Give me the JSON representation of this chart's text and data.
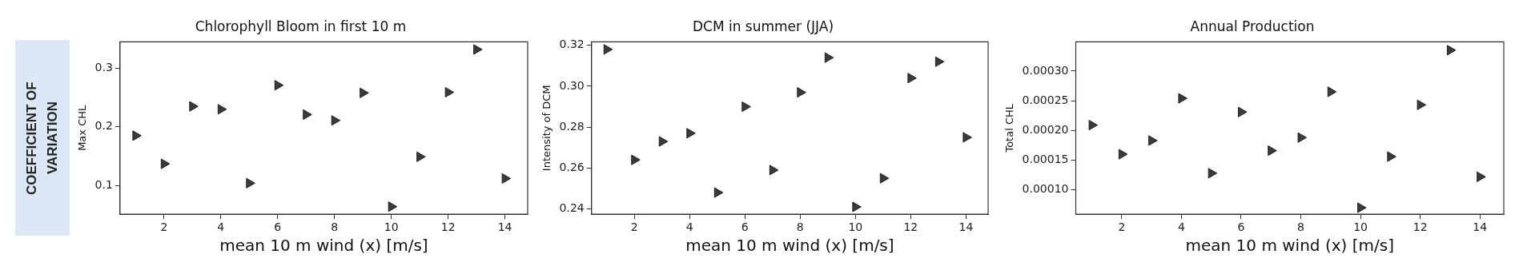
{
  "chart_data": [
    {
      "type": "scatter",
      "title": "Chlorophyll Bloom in first 10 m",
      "xlabel": "mean 10 m wind (x) [m/s]",
      "ylabel": "Max CHL",
      "annotations": [
        "COEFFICIENT OF VARIATION"
      ],
      "x": [
        1,
        2,
        3,
        4,
        5,
        6,
        7,
        8,
        9,
        10,
        11,
        12,
        13,
        14
      ],
      "series": [
        {
          "color": "#3a3a3a",
          "values": [
            0.185,
            0.137,
            0.235,
            0.23,
            0.104,
            0.271,
            0.221,
            0.211,
            0.258,
            0.064,
            0.149,
            0.259,
            0.332,
            0.112
          ]
        }
      ],
      "xlim": [
        0.45,
        14.8
      ],
      "xticks": [
        2,
        4,
        6,
        8,
        10,
        12,
        14
      ],
      "ylim": [
        0.051,
        0.345
      ],
      "yticks": [
        {
          "value": 0.1,
          "label": "0.1"
        },
        {
          "value": 0.2,
          "label": "0.2"
        },
        {
          "value": 0.3,
          "label": "0.3"
        }
      ],
      "grid": false,
      "legend": false,
      "marker": "triangle"
    },
    {
      "type": "scatter",
      "title": "DCM in summer (JJA)",
      "xlabel": "mean 10 m wind (x) [m/s]",
      "ylabel": "Intensity of DCM",
      "x": [
        1,
        2,
        3,
        4,
        5,
        6,
        7,
        8,
        9,
        10,
        11,
        12,
        13,
        14
      ],
      "series": [
        {
          "color": "#3a3a3a",
          "values": [
            0.318,
            0.264,
            0.273,
            0.277,
            0.248,
            0.29,
            0.259,
            0.297,
            0.314,
            0.241,
            0.255,
            0.304,
            0.312,
            0.275
          ]
        }
      ],
      "xlim": [
        0.45,
        14.8
      ],
      "xticks": [
        2,
        4,
        6,
        8,
        10,
        12,
        14
      ],
      "ylim": [
        0.2374,
        0.3217
      ],
      "yticks": [
        {
          "value": 0.24,
          "label": "0.24"
        },
        {
          "value": 0.26,
          "label": "0.26"
        },
        {
          "value": 0.28,
          "label": "0.28"
        },
        {
          "value": 0.3,
          "label": "0.30"
        },
        {
          "value": 0.32,
          "label": "0.32"
        }
      ],
      "grid": false,
      "legend": false,
      "marker": "triangle"
    },
    {
      "type": "scatter",
      "title": "Annual Production",
      "xlabel": "mean 10 m wind (x) [m/s]",
      "ylabel": "Total CHL",
      "x": [
        1,
        2,
        3,
        4,
        5,
        6,
        7,
        8,
        9,
        10,
        11,
        12,
        13,
        14
      ],
      "series": [
        {
          "color": "#3a3a3a",
          "values": [
            0.000209,
            0.00016,
            0.000183,
            0.000254,
            0.000128,
            0.000231,
            0.000166,
            0.000188,
            0.000265,
            7e-05,
            0.000156,
            0.000243,
            0.000335,
            0.000122
          ]
        }
      ],
      "xlim": [
        0.46,
        14.8
      ],
      "xticks": [
        2,
        4,
        6,
        8,
        10,
        12,
        14
      ],
      "ylim": [
        5.9e-05,
        0.000349
      ],
      "yticks": [
        {
          "value": 0.0001,
          "label": "0.00010"
        },
        {
          "value": 0.00015,
          "label": "0.00015"
        },
        {
          "value": 0.0002,
          "label": "0.00020"
        },
        {
          "value": 0.00025,
          "label": "0.00025"
        },
        {
          "value": 0.0003,
          "label": "0.00030"
        }
      ],
      "grid": false,
      "legend": false,
      "marker": "triangle"
    }
  ]
}
